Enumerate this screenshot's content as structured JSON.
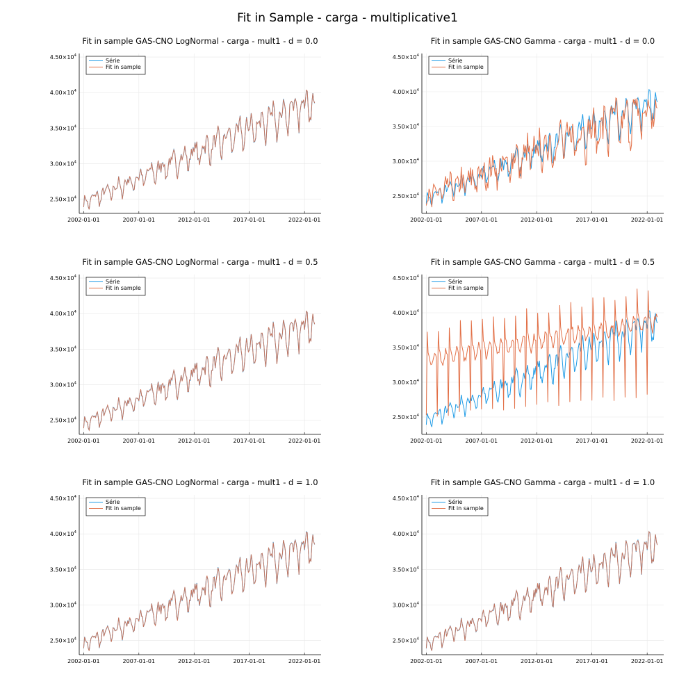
{
  "suptitle": "Fit in Sample - carga - multiplicative1",
  "legend": [
    "Série",
    "Fit in sample"
  ],
  "colors": {
    "serie": "#1e9be6",
    "fit": "#e26f46"
  },
  "chart_data": [
    {
      "type": "line",
      "title": "Fit in sample GAS-CNO LogNormal - carga - mult1 - d = 0.0",
      "fit_mode": "match",
      "xlim": [
        2001.6,
        2023.5
      ],
      "ylim": [
        23000,
        45500
      ],
      "xticks": [
        "2002-01-01",
        "2007-01-01",
        "2012-01-01",
        "2017-01-01",
        "2022-01-01"
      ],
      "yticks": [
        "2.50×10^4",
        "3.00×10^4",
        "3.50×10^4",
        "4.00×10^4",
        "4.50×10^4"
      ],
      "legend_position": "top-left",
      "grid": true
    },
    {
      "type": "line",
      "title": "Fit in sample GAS-CNO Gamma - carga - mult1 - d = 0.0",
      "fit_mode": "noisy",
      "xlim": [
        2001.6,
        2023.5
      ],
      "ylim": [
        22500,
        45500
      ],
      "xticks": [
        "2002-01-01",
        "2007-01-01",
        "2012-01-01",
        "2017-01-01",
        "2022-01-01"
      ],
      "yticks": [
        "2.50×10^4",
        "3.00×10^4",
        "3.50×10^4",
        "4.00×10^4",
        "4.50×10^4"
      ],
      "legend_position": "top-left",
      "grid": true
    },
    {
      "type": "line",
      "title": "Fit in sample GAS-CNO LogNormal - carga - mult1 - d = 0.5",
      "fit_mode": "match",
      "xlim": [
        2001.6,
        2023.5
      ],
      "ylim": [
        23000,
        45500
      ],
      "xticks": [
        "2002-01-01",
        "2007-01-01",
        "2012-01-01",
        "2017-01-01",
        "2022-01-01"
      ],
      "yticks": [
        "2.50×10^4",
        "3.00×10^4",
        "3.50×10^4",
        "4.00×10^4",
        "4.50×10^4"
      ],
      "legend_position": "top-left",
      "grid": true
    },
    {
      "type": "line",
      "title": "Fit in sample GAS-CNO Gamma - carga - mult1 - d = 0.5",
      "fit_mode": "spiky",
      "xlim": [
        2001.6,
        2023.5
      ],
      "ylim": [
        22500,
        45500
      ],
      "xticks": [
        "2002-01-01",
        "2007-01-01",
        "2012-01-01",
        "2017-01-01",
        "2022-01-01"
      ],
      "yticks": [
        "2.50×10^4",
        "3.00×10^4",
        "3.50×10^4",
        "4.00×10^4",
        "4.50×10^4"
      ],
      "legend_position": "top-left",
      "grid": true
    },
    {
      "type": "line",
      "title": "Fit in sample GAS-CNO LogNormal - carga - mult1 - d = 1.0",
      "fit_mode": "match",
      "xlim": [
        2001.6,
        2023.5
      ],
      "ylim": [
        23000,
        45500
      ],
      "xticks": [
        "2002-01-01",
        "2007-01-01",
        "2012-01-01",
        "2017-01-01",
        "2022-01-01"
      ],
      "yticks": [
        "2.50×10^4",
        "3.00×10^4",
        "3.50×10^4",
        "4.00×10^4",
        "4.50×10^4"
      ],
      "legend_position": "top-left",
      "grid": true
    },
    {
      "type": "line",
      "title": "Fit in sample GAS-CNO Gamma - carga - mult1 - d = 1.0",
      "fit_mode": "match",
      "xlim": [
        2001.6,
        2023.5
      ],
      "ylim": [
        23000,
        45500
      ],
      "xticks": [
        "2002-01-01",
        "2007-01-01",
        "2012-01-01",
        "2017-01-01",
        "2022-01-01"
      ],
      "yticks": [
        "2.50×10^4",
        "3.00×10^4",
        "3.50×10^4",
        "4.00×10^4",
        "4.50×10^4"
      ],
      "legend_position": "top-left",
      "grid": true
    }
  ]
}
